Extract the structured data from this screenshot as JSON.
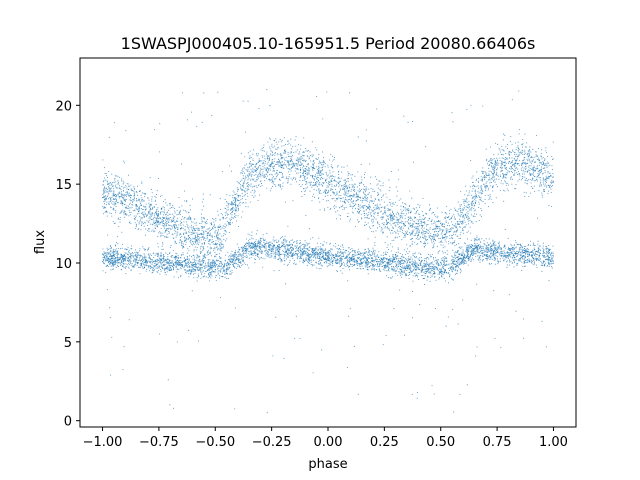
{
  "chart_data": {
    "type": "scatter",
    "title": "1SWASPJ000405.10-165951.5 Period 20080.66406s",
    "xlabel": "phase",
    "ylabel": "flux",
    "xlim": [
      -1.1,
      1.1
    ],
    "ylim": [
      -0.4,
      23.0
    ],
    "xticks": [
      -1.0,
      -0.75,
      -0.5,
      -0.25,
      0.0,
      0.25,
      0.5,
      0.75,
      1.0
    ],
    "xtick_labels": [
      "−1.00",
      "−0.75",
      "−0.50",
      "−0.25",
      "0.00",
      "0.25",
      "0.50",
      "0.75",
      "1.00"
    ],
    "yticks": [
      0,
      5,
      10,
      15,
      20
    ],
    "ytick_labels": [
      "0",
      "5",
      "10",
      "15",
      "20"
    ],
    "grid": false,
    "marker_color": "#1f77b4",
    "series": [
      {
        "branch": "upper_sawtooth",
        "x": [
          -1.0,
          -0.9,
          -0.75,
          -0.6,
          -0.5,
          -0.45,
          -0.35,
          -0.25,
          -0.15,
          -0.05,
          0.05,
          0.2,
          0.35,
          0.5,
          0.55,
          0.65,
          0.75,
          0.85,
          0.95,
          1.0
        ],
        "y": [
          14.5,
          14.0,
          12.8,
          12.0,
          11.2,
          12.5,
          15.5,
          16.2,
          16.2,
          15.6,
          14.6,
          13.5,
          12.5,
          11.8,
          12.0,
          14.0,
          16.2,
          16.3,
          15.9,
          15.0
        ]
      },
      {
        "branch": "lower_band",
        "x": [
          -1.0,
          -0.85,
          -0.7,
          -0.55,
          -0.45,
          -0.35,
          -0.2,
          0.0,
          0.15,
          0.3,
          0.45,
          0.55,
          0.65,
          0.8,
          1.0
        ],
        "y": [
          10.3,
          10.2,
          10.0,
          9.8,
          9.7,
          11.0,
          10.8,
          10.4,
          10.2,
          10.0,
          9.6,
          9.8,
          10.9,
          10.6,
          10.4
        ]
      }
    ]
  }
}
